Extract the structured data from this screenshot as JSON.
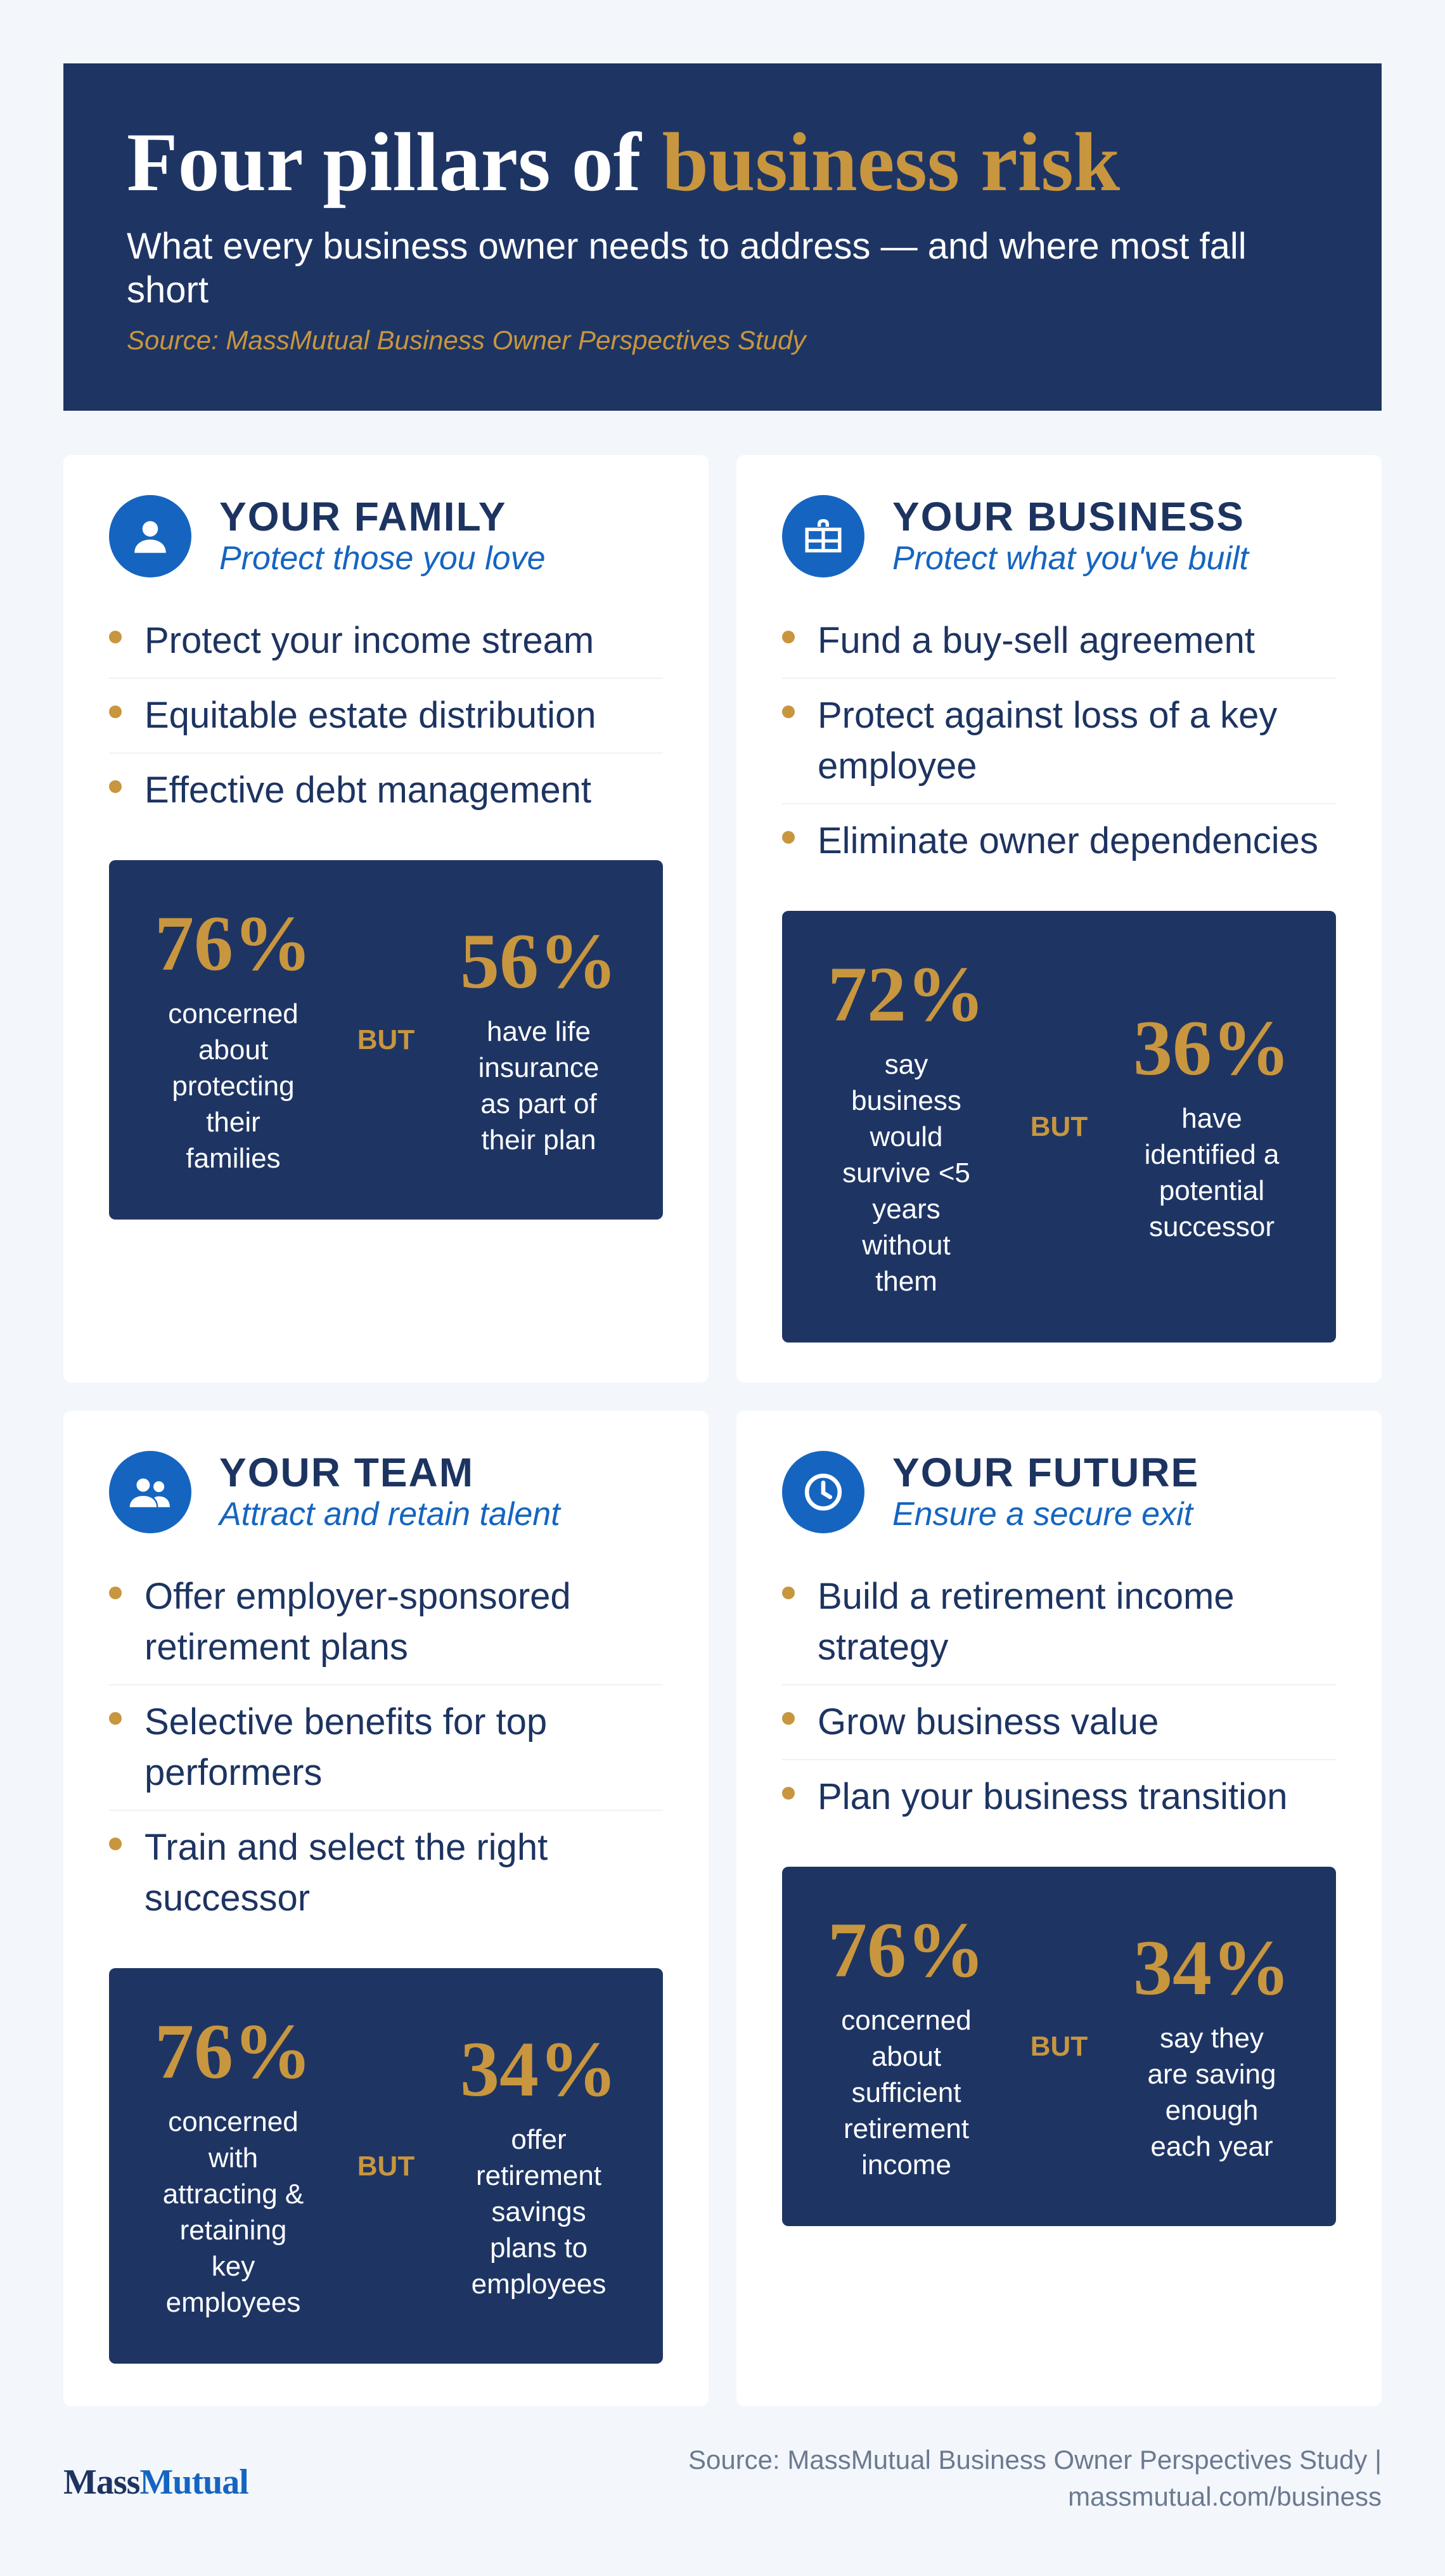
{
  "header": {
    "title_part1": "Four pillars of",
    "title_accent": "business risk",
    "subtitle": "What every business owner needs to address — and where most fall short",
    "source": "Source: MassMutual Business Owner Perspectives Study"
  },
  "cards": [
    {
      "icon": "person-icon",
      "title": "YOUR FAMILY",
      "tagline": "Protect those you love",
      "items": [
        "Protect your income stream",
        "Equitable estate distribution",
        "Effective debt management"
      ],
      "stats": {
        "left_value": "76%",
        "left_label": "concerned about protecting their families",
        "connector": "BUT",
        "right_value": "56%",
        "right_label": "have life insurance as part of their plan"
      }
    },
    {
      "icon": "business-icon",
      "title": "YOUR BUSINESS",
      "tagline": "Protect what you've built",
      "items": [
        "Fund a buy-sell agreement",
        "Protect against loss of a key employee",
        "Eliminate owner dependencies"
      ],
      "stats": {
        "left_value": "72%",
        "left_label": "say business would survive <5 years without them",
        "connector": "BUT",
        "right_value": "36%",
        "right_label": "have identified a potential successor"
      }
    },
    {
      "icon": "team-icon",
      "title": "YOUR TEAM",
      "tagline": "Attract and retain talent",
      "items": [
        "Offer employer-sponsored retirement plans",
        "Selective benefits for top performers",
        "Train and select the right successor"
      ],
      "stats": {
        "left_value": "76%",
        "left_label": "concerned with attracting & retaining key employees",
        "connector": "BUT",
        "right_value": "34%",
        "right_label": "offer retirement savings plans to employees"
      }
    },
    {
      "icon": "clock-icon",
      "title": "YOUR FUTURE",
      "tagline": "Ensure a secure exit",
      "items": [
        "Build a retirement income strategy",
        "Grow business value",
        "Plan your business transition"
      ],
      "stats": {
        "left_value": "76%",
        "left_label": "concerned about sufficient retirement income",
        "connector": "BUT",
        "right_value": "34%",
        "right_label": "say they are saving enough each year"
      }
    }
  ],
  "footer": {
    "logo_mass": "Mass",
    "logo_mutual": "Mutual",
    "source_line1": "Source: MassMutual Business Owner Perspectives Study  |",
    "source_line2": "massmutual.com/business"
  },
  "colors": {
    "navy": "#1e3564",
    "gold": "#c8963f",
    "blue": "#1565c0",
    "background": "#f3f6fb"
  }
}
